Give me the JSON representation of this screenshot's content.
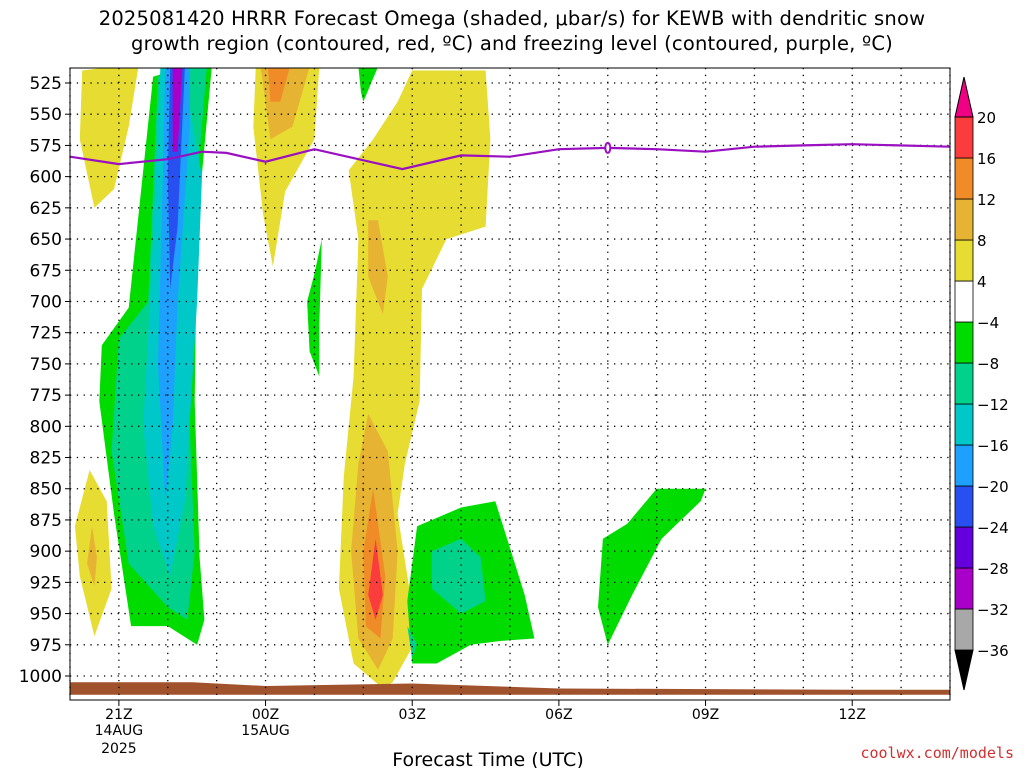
{
  "title_line1": "2025081420 HRRR Forecast Omega (shaded, μbar/s) for KEWB with dendritic snow",
  "title_line2": "growth region (contoured, red, ºC) and freezing level (contoured, purple, ºC)",
  "credit": "coolwx.com/models",
  "chart_data": {
    "type": "heatmap",
    "xlabel": "Forecast Time (UTC)",
    "ylabel": "",
    "x_ticks": [
      {
        "label": "21Z",
        "sub1": "14AUG",
        "sub2": "2025",
        "hour": 21
      },
      {
        "label": "00Z",
        "sub1": "15AUG",
        "sub2": "",
        "hour": 24
      },
      {
        "label": "03Z",
        "sub1": "",
        "sub2": "",
        "hour": 27
      },
      {
        "label": "06Z",
        "sub1": "",
        "sub2": "",
        "hour": 30
      },
      {
        "label": "09Z",
        "sub1": "",
        "sub2": "",
        "hour": 33
      },
      {
        "label": "12Z",
        "sub1": "",
        "sub2": "",
        "hour": 36
      }
    ],
    "xlim": [
      20,
      38
    ],
    "ylim": [
      1012,
      515
    ],
    "y_ticks": [
      525,
      550,
      575,
      600,
      625,
      650,
      675,
      700,
      725,
      750,
      775,
      800,
      825,
      850,
      875,
      900,
      925,
      950,
      975,
      1000
    ],
    "grid": true,
    "colorbar": {
      "levels": [
        -36,
        -32,
        -28,
        -24,
        -20,
        -16,
        -12,
        -8,
        -4,
        4,
        8,
        12,
        16,
        20
      ],
      "colors": [
        "#000000",
        "#a8a8a8",
        "#a800c8",
        "#6400dc",
        "#2850f0",
        "#1ea0ff",
        "#00c8c8",
        "#00d28c",
        "#00dc00",
        "#ffffff",
        "#e6dc32",
        "#e6b432",
        "#f08c28",
        "#fa3c3c",
        "#f00082"
      ]
    },
    "freezing_level": {
      "color": "#9a10c0",
      "points": [
        [
          20,
          584
        ],
        [
          21,
          590
        ],
        [
          22,
          586
        ],
        [
          22.7,
          580
        ],
        [
          23.2,
          581
        ],
        [
          24,
          588
        ],
        [
          25,
          578
        ],
        [
          26.8,
          594
        ],
        [
          28,
          583
        ],
        [
          29,
          584
        ],
        [
          30,
          578
        ],
        [
          31,
          577
        ],
        [
          32,
          578
        ],
        [
          33,
          580
        ],
        [
          34,
          576
        ],
        [
          35,
          575
        ],
        [
          36,
          574
        ],
        [
          38,
          576
        ]
      ],
      "label_hour": 31
    },
    "omega_regions": [
      {
        "level": "4..8",
        "color": "#e6dc32",
        "hour_pressure": [
          [
            20.85,
            512
          ],
          [
            21.4,
            512
          ],
          [
            21.2,
            560
          ],
          [
            20.9,
            610
          ],
          [
            20.5,
            625
          ],
          [
            20.2,
            570
          ],
          [
            20.25,
            515
          ]
        ]
      },
      {
        "level": "4..8",
        "color": "#e6dc32",
        "hour_pressure": [
          [
            20.4,
            835
          ],
          [
            20.75,
            860
          ],
          [
            20.85,
            930
          ],
          [
            20.5,
            968
          ],
          [
            20.2,
            920
          ],
          [
            20.1,
            880
          ]
        ]
      },
      {
        "level": "8..12",
        "color": "#e6b432",
        "hour_pressure": [
          [
            20.45,
            880
          ],
          [
            20.55,
            905
          ],
          [
            20.5,
            928
          ],
          [
            20.35,
            910
          ]
        ]
      },
      {
        "level": "4..8",
        "color": "#e6dc32",
        "hour_pressure": [
          [
            23.8,
            512
          ],
          [
            25.1,
            512
          ],
          [
            25.0,
            570
          ],
          [
            24.4,
            612
          ],
          [
            24.15,
            672
          ],
          [
            23.95,
            630
          ],
          [
            23.75,
            560
          ]
        ]
      },
      {
        "level": "8..12",
        "color": "#e6b432",
        "hour_pressure": [
          [
            23.9,
            512
          ],
          [
            24.9,
            512
          ],
          [
            24.55,
            560
          ],
          [
            24.1,
            570
          ]
        ]
      },
      {
        "level": "12..16",
        "color": "#f08c28",
        "hour_pressure": [
          [
            24.05,
            512
          ],
          [
            24.5,
            512
          ],
          [
            24.3,
            540
          ],
          [
            24.1,
            540
          ]
        ]
      },
      {
        "level": "4..8",
        "color": "#e6dc32",
        "hour_pressure": [
          [
            27.0,
            515
          ],
          [
            28.5,
            515
          ],
          [
            28.6,
            570
          ],
          [
            28.5,
            640
          ],
          [
            27.7,
            650
          ],
          [
            27.2,
            690
          ],
          [
            27.15,
            780
          ],
          [
            26.85,
            830
          ],
          [
            26.7,
            870
          ],
          [
            27.1,
            970
          ],
          [
            26.6,
            1005
          ],
          [
            26.4,
            1010
          ],
          [
            25.8,
            990
          ],
          [
            25.5,
            930
          ],
          [
            25.6,
            840
          ],
          [
            25.8,
            760
          ],
          [
            25.9,
            650
          ],
          [
            25.7,
            595
          ],
          [
            26.2,
            570
          ],
          [
            26.7,
            540
          ]
        ]
      },
      {
        "level": "8..12",
        "color": "#e6b432",
        "hour_pressure": [
          [
            26.3,
            635
          ],
          [
            26.5,
            680
          ],
          [
            26.4,
            710
          ],
          [
            26.1,
            680
          ],
          [
            26.1,
            635
          ]
        ]
      },
      {
        "level": "8..12",
        "color": "#e6b432",
        "hour_pressure": [
          [
            26.1,
            790
          ],
          [
            26.5,
            820
          ],
          [
            26.7,
            900
          ],
          [
            26.6,
            970
          ],
          [
            26.3,
            995
          ],
          [
            25.9,
            970
          ],
          [
            25.75,
            900
          ],
          [
            25.9,
            830
          ]
        ]
      },
      {
        "level": "12..16",
        "color": "#f08c28",
        "hour_pressure": [
          [
            26.2,
            850
          ],
          [
            26.45,
            920
          ],
          [
            26.35,
            970
          ],
          [
            26.05,
            960
          ],
          [
            26.0,
            900
          ]
        ]
      },
      {
        "level": "16..20",
        "color": "#fa3c3c",
        "hour_pressure": [
          [
            26.25,
            890
          ],
          [
            26.4,
            935
          ],
          [
            26.25,
            955
          ],
          [
            26.1,
            935
          ]
        ]
      },
      {
        "level": "-8..-4",
        "color": "#00dc00",
        "hour_pressure": [
          [
            22.35,
            512
          ],
          [
            22.9,
            512
          ],
          [
            22.6,
            640
          ],
          [
            22.55,
            780
          ],
          [
            22.65,
            905
          ],
          [
            22.75,
            955
          ],
          [
            22.6,
            975
          ],
          [
            22.0,
            960
          ],
          [
            21.25,
            960
          ],
          [
            20.9,
            870
          ],
          [
            20.6,
            780
          ],
          [
            20.65,
            735
          ],
          [
            21.2,
            705
          ],
          [
            21.7,
            520
          ]
        ]
      },
      {
        "level": "-12..-8",
        "color": "#00d28c",
        "hour_pressure": [
          [
            22.4,
            512
          ],
          [
            22.8,
            512
          ],
          [
            22.5,
            650
          ],
          [
            22.45,
            800
          ],
          [
            22.55,
            900
          ],
          [
            22.4,
            955
          ],
          [
            22.0,
            945
          ],
          [
            21.2,
            910
          ],
          [
            20.85,
            820
          ],
          [
            21.0,
            730
          ],
          [
            21.6,
            700
          ],
          [
            21.8,
            520
          ]
        ]
      },
      {
        "level": "-16..-12",
        "color": "#00c8c8",
        "hour_pressure": [
          [
            21.85,
            512
          ],
          [
            22.3,
            512
          ],
          [
            22.7,
            600
          ],
          [
            22.6,
            700
          ],
          [
            22.35,
            860
          ],
          [
            22.05,
            920
          ],
          [
            21.7,
            880
          ],
          [
            21.5,
            800
          ],
          [
            21.7,
            650
          ]
        ]
      },
      {
        "level": "-20..-16",
        "color": "#1ea0ff",
        "hour_pressure": [
          [
            21.95,
            512
          ],
          [
            22.45,
            512
          ],
          [
            22.45,
            560
          ],
          [
            22.2,
            700
          ],
          [
            22.1,
            800
          ],
          [
            21.95,
            860
          ],
          [
            21.8,
            750
          ],
          [
            21.9,
            600
          ]
        ]
      },
      {
        "level": "-24..-20",
        "color": "#2850f0",
        "hour_pressure": [
          [
            22.05,
            512
          ],
          [
            22.35,
            512
          ],
          [
            22.2,
            640
          ],
          [
            22.05,
            690
          ],
          [
            22.0,
            600
          ]
        ]
      },
      {
        "level": "-28..-24",
        "color": "#a800c8",
        "hour_pressure": [
          [
            22.1,
            512
          ],
          [
            22.3,
            512
          ],
          [
            22.2,
            580
          ],
          [
            22.1,
            580
          ]
        ]
      },
      {
        "level": "-8..-4",
        "color": "#00dc00",
        "hour_pressure": [
          [
            25.0,
            678
          ],
          [
            25.15,
            650
          ],
          [
            25.1,
            720
          ],
          [
            25.1,
            760
          ],
          [
            24.9,
            740
          ],
          [
            24.85,
            700
          ]
        ]
      },
      {
        "level": "-8..-4",
        "color": "#00dc00",
        "hour_pressure": [
          [
            25.9,
            512
          ],
          [
            26.3,
            512
          ],
          [
            26.0,
            540
          ],
          [
            25.95,
            532
          ]
        ]
      },
      {
        "level": "-8..-4",
        "color": "#00dc00",
        "hour_pressure": [
          [
            28.0,
            865
          ],
          [
            28.7,
            860
          ],
          [
            29.3,
            935
          ],
          [
            29.5,
            970
          ],
          [
            28.8,
            972
          ],
          [
            28.2,
            975
          ],
          [
            27.5,
            990
          ],
          [
            27.0,
            990
          ],
          [
            26.9,
            940
          ],
          [
            27.1,
            880
          ]
        ]
      },
      {
        "level": "-12..-8",
        "color": "#00d28c",
        "hour_pressure": [
          [
            28.0,
            890
          ],
          [
            28.4,
            905
          ],
          [
            28.5,
            940
          ],
          [
            28.0,
            950
          ],
          [
            27.4,
            930
          ],
          [
            27.4,
            900
          ]
        ]
      },
      {
        "level": "-12..-8",
        "color": "#00d28c",
        "hour_pressure": [
          [
            26.9,
            960
          ],
          [
            27.1,
            975
          ],
          [
            27.0,
            985
          ]
        ]
      },
      {
        "level": "-8..-4",
        "color": "#00dc00",
        "hour_pressure": [
          [
            32.0,
            850
          ],
          [
            33.0,
            850
          ],
          [
            32.9,
            860
          ],
          [
            32.1,
            890
          ],
          [
            31.5,
            935
          ],
          [
            31.0,
            975
          ],
          [
            30.8,
            945
          ],
          [
            30.9,
            890
          ],
          [
            31.4,
            878
          ]
        ]
      }
    ],
    "ground": {
      "color": "#a0522d",
      "hour_pressure": [
        [
          20,
          1005
        ],
        [
          22.5,
          1005
        ],
        [
          24,
          1008
        ],
        [
          27,
          1006
        ],
        [
          30,
          1010
        ],
        [
          36,
          1011
        ],
        [
          38,
          1011
        ],
        [
          38,
          1015
        ],
        [
          20,
          1015
        ]
      ]
    }
  }
}
